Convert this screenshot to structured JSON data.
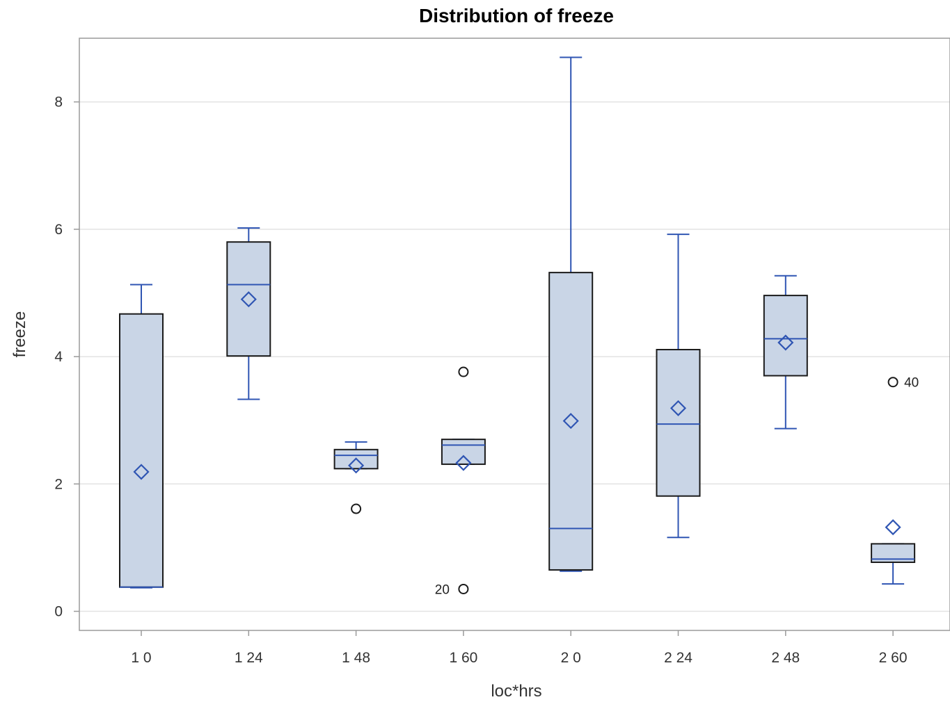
{
  "chart_data": {
    "type": "boxplot",
    "title": "Distribution of freeze",
    "xlabel": "loc*hrs",
    "ylabel": "freeze",
    "categories": [
      "1 0",
      "1 24",
      "1 48",
      "1 60",
      "2 0",
      "2 24",
      "2 48",
      "2 60"
    ],
    "ylim": [
      -0.3,
      9.0
    ],
    "yticks": [
      0,
      2,
      4,
      6,
      8
    ],
    "grid": true,
    "colors": {
      "box_fill": "#c9d5e6",
      "box_edge": "#1a1a1a",
      "whisker": "#2f55b3",
      "median": "#2f55b3",
      "mean_marker": "#2f55b3",
      "outlier": "#1a1a1a",
      "grid": "#e3e3e3",
      "frame": "#9a9a9a"
    },
    "boxes": [
      {
        "category": "1 0",
        "whisker_low": 0.37,
        "q1": 0.38,
        "median": 0.38,
        "q3": 4.67,
        "whisker_high": 5.13,
        "mean": 2.19,
        "outliers": []
      },
      {
        "category": "1 24",
        "whisker_low": 3.33,
        "q1": 4.01,
        "median": 5.13,
        "q3": 5.8,
        "whisker_high": 6.02,
        "mean": 4.9,
        "outliers": []
      },
      {
        "category": "1 48",
        "whisker_low": 2.24,
        "q1": 2.24,
        "median": 2.45,
        "q3": 2.54,
        "whisker_high": 2.66,
        "mean": 2.29,
        "outliers": [
          {
            "value": 1.61,
            "label": ""
          }
        ]
      },
      {
        "category": "1 60",
        "whisker_low": 2.31,
        "q1": 2.31,
        "median": 2.61,
        "q3": 2.7,
        "whisker_high": 2.7,
        "mean": 2.33,
        "outliers": [
          {
            "value": 3.76,
            "label": ""
          },
          {
            "value": 0.35,
            "label": "20"
          }
        ]
      },
      {
        "category": "2 0",
        "whisker_low": 0.63,
        "q1": 0.65,
        "median": 1.3,
        "q3": 5.32,
        "whisker_high": 8.7,
        "mean": 2.99,
        "outliers": []
      },
      {
        "category": "2 24",
        "whisker_low": 1.16,
        "q1": 1.81,
        "median": 2.94,
        "q3": 4.11,
        "whisker_high": 5.92,
        "mean": 3.19,
        "outliers": []
      },
      {
        "category": "2 48",
        "whisker_low": 2.87,
        "q1": 3.7,
        "median": 4.28,
        "q3": 4.96,
        "whisker_high": 5.27,
        "mean": 4.22,
        "outliers": []
      },
      {
        "category": "2 60",
        "whisker_low": 0.43,
        "q1": 0.77,
        "median": 0.82,
        "q3": 1.06,
        "whisker_high": 1.06,
        "mean": 1.32,
        "outliers": [
          {
            "value": 3.6,
            "label": "40"
          }
        ]
      }
    ]
  }
}
